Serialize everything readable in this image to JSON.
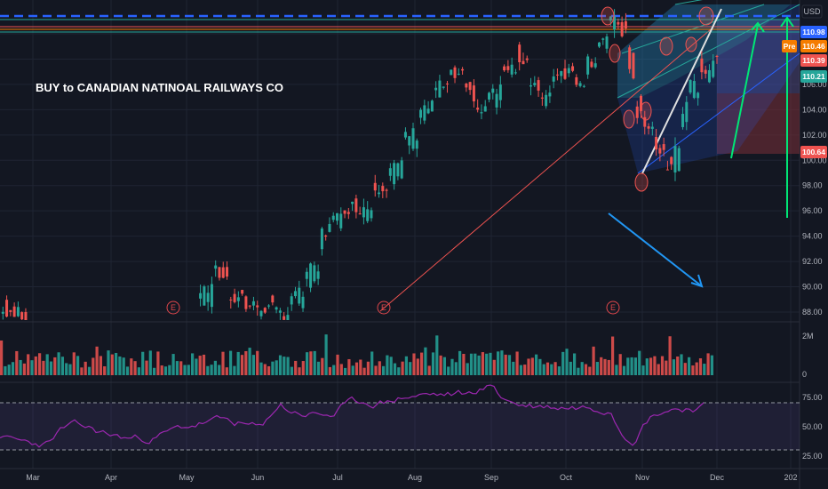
{
  "chart_data": {
    "type": "candlestick",
    "title": "BUY to CANADIAN NATINOAL RAILWAYS CO",
    "currency": "USD",
    "x_labels": [
      "Mar",
      "Apr",
      "May",
      "Jun",
      "Jul",
      "Aug",
      "Sep",
      "Oct",
      "Nov",
      "Dec",
      "202"
    ],
    "price_axis": {
      "ticks": [
        "110.00",
        "108.00",
        "106.00",
        "104.00",
        "102.00",
        "100.00",
        "98.00",
        "96.00",
        "94.00",
        "92.00",
        "90.00",
        "88.00"
      ]
    },
    "volume_axis": {
      "ticks": [
        "2M",
        "0"
      ]
    },
    "rsi_axis": {
      "ticks": [
        "75.00",
        "50.00",
        "25.00"
      ],
      "bands": [
        70,
        30
      ]
    },
    "price_badges": [
      {
        "label": "110.98",
        "color": "#2962ff"
      },
      {
        "label": "110.46",
        "color": "#f57c00",
        "tag": "Pre"
      },
      {
        "label": "110.39",
        "color": "#ef5350"
      },
      {
        "label": "110.21",
        "color": "#26a69a"
      },
      {
        "label": "100.64",
        "color": "#ef5350"
      }
    ],
    "earnings_markers": [
      "E",
      "E",
      "E"
    ],
    "colors": {
      "up": "#26a69a",
      "down": "#ef5350",
      "rsi": "#9c27b0",
      "accent": "#2962ff",
      "arrow_green": "#00e676"
    },
    "price_series": [
      {
        "m": "Feb",
        "t": 0.0,
        "o": 93.8,
        "c": 93.3
      },
      {
        "m": "Mar",
        "t": 0.3,
        "o": 92.8,
        "c": 91.2
      },
      {
        "m": "Mar",
        "t": 0.6,
        "o": 89.9,
        "c": 88.4
      },
      {
        "m": "Mar",
        "t": 0.9,
        "o": 88.0,
        "c": 86.5
      },
      {
        "m": "Jun",
        "t": 3.2,
        "o": 86.5,
        "c": 89.0
      },
      {
        "m": "Jun",
        "t": 3.4,
        "o": 89.0,
        "c": 91.8
      },
      {
        "m": "Jun",
        "t": 3.6,
        "o": 91.0,
        "c": 89.5
      },
      {
        "m": "Jun",
        "t": 3.8,
        "o": 89.5,
        "c": 88.6
      },
      {
        "m": "Jul",
        "t": 4.0,
        "o": 88.6,
        "c": 88.0
      },
      {
        "m": "Jul",
        "t": 4.1,
        "o": 88.0,
        "c": 88.8
      },
      {
        "m": "Jul",
        "t": 4.2,
        "o": 88.8,
        "c": 87.6
      },
      {
        "m": "Jul",
        "t": 4.4,
        "o": 87.6,
        "c": 89.0
      },
      {
        "m": "Jul",
        "t": 4.6,
        "o": 89.0,
        "c": 90.5
      },
      {
        "m": "Jul",
        "t": 4.8,
        "o": 90.5,
        "c": 93.5
      },
      {
        "m": "Jul",
        "t": 4.9,
        "o": 93.5,
        "c": 95.0
      },
      {
        "m": "Aug",
        "t": 5.1,
        "o": 95.0,
        "c": 96.5
      },
      {
        "m": "Aug",
        "t": 5.3,
        "o": 96.5,
        "c": 95.8
      },
      {
        "m": "Aug",
        "t": 5.5,
        "o": 95.8,
        "c": 97.8
      },
      {
        "m": "Aug",
        "t": 5.7,
        "o": 97.8,
        "c": 98.8
      },
      {
        "m": "Aug",
        "t": 5.9,
        "o": 98.8,
        "c": 101.5
      },
      {
        "m": "Aug",
        "t": 6.1,
        "o": 101.5,
        "c": 103.8
      },
      {
        "m": "Aug",
        "t": 6.3,
        "o": 103.8,
        "c": 105.5
      },
      {
        "m": "Aug",
        "t": 6.5,
        "o": 105.5,
        "c": 106.8
      },
      {
        "m": "Sep",
        "t": 6.7,
        "o": 106.8,
        "c": 106.0
      },
      {
        "m": "Sep",
        "t": 6.85,
        "o": 106.0,
        "c": 103.5
      },
      {
        "m": "Sep",
        "t": 7.0,
        "o": 103.5,
        "c": 104.8
      },
      {
        "m": "Sep",
        "t": 7.2,
        "o": 104.8,
        "c": 107.2
      },
      {
        "m": "Sep",
        "t": 7.4,
        "o": 107.2,
        "c": 108.5
      },
      {
        "m": "Sep",
        "t": 7.55,
        "o": 108.5,
        "c": 106.2
      },
      {
        "m": "Sep",
        "t": 7.7,
        "o": 106.2,
        "c": 104.5
      },
      {
        "m": "Sep",
        "t": 7.85,
        "o": 104.5,
        "c": 106.8
      },
      {
        "m": "Oct",
        "t": 8.0,
        "o": 106.8,
        "c": 107.5
      },
      {
        "m": "Oct",
        "t": 8.15,
        "o": 107.5,
        "c": 106.0
      },
      {
        "m": "Oct",
        "t": 8.3,
        "o": 106.0,
        "c": 107.3
      },
      {
        "m": "Oct",
        "t": 8.45,
        "o": 107.3,
        "c": 109.2
      },
      {
        "m": "Oct",
        "t": 8.6,
        "o": 109.2,
        "c": 110.5
      },
      {
        "m": "Oct",
        "t": 8.75,
        "o": 110.5,
        "c": 111.5
      },
      {
        "m": "Oct",
        "t": 8.85,
        "o": 111.5,
        "c": 108.8
      },
      {
        "m": "Oct",
        "t": 8.95,
        "o": 108.8,
        "c": 104.5
      },
      {
        "m": "Oct",
        "t": 9.05,
        "o": 104.5,
        "c": 103.0
      },
      {
        "m": "Oct",
        "t": 9.2,
        "o": 103.0,
        "c": 101.2
      },
      {
        "m": "Nov",
        "t": 9.35,
        "o": 101.2,
        "c": 99.8
      },
      {
        "m": "Nov",
        "t": 9.45,
        "o": 99.8,
        "c": 99.0
      },
      {
        "m": "Nov",
        "t": 9.55,
        "o": 99.0,
        "c": 103.2
      },
      {
        "m": "Nov",
        "t": 9.65,
        "o": 103.2,
        "c": 105.0
      },
      {
        "m": "Nov",
        "t": 9.8,
        "o": 105.0,
        "c": 107.5
      },
      {
        "m": "Nov",
        "t": 9.9,
        "o": 107.5,
        "c": 106.8
      },
      {
        "m": "Nov",
        "t": 10.0,
        "o": 106.8,
        "c": 107.8
      },
      {
        "m": "Nov",
        "t": 10.1,
        "o": 107.8,
        "c": 108.3
      },
      {
        "m": "Nov",
        "t": 10.2,
        "o": 108.3,
        "c": 109.5
      },
      {
        "m": "Nov",
        "t": 10.3,
        "o": 109.5,
        "c": 110.4
      }
    ]
  }
}
